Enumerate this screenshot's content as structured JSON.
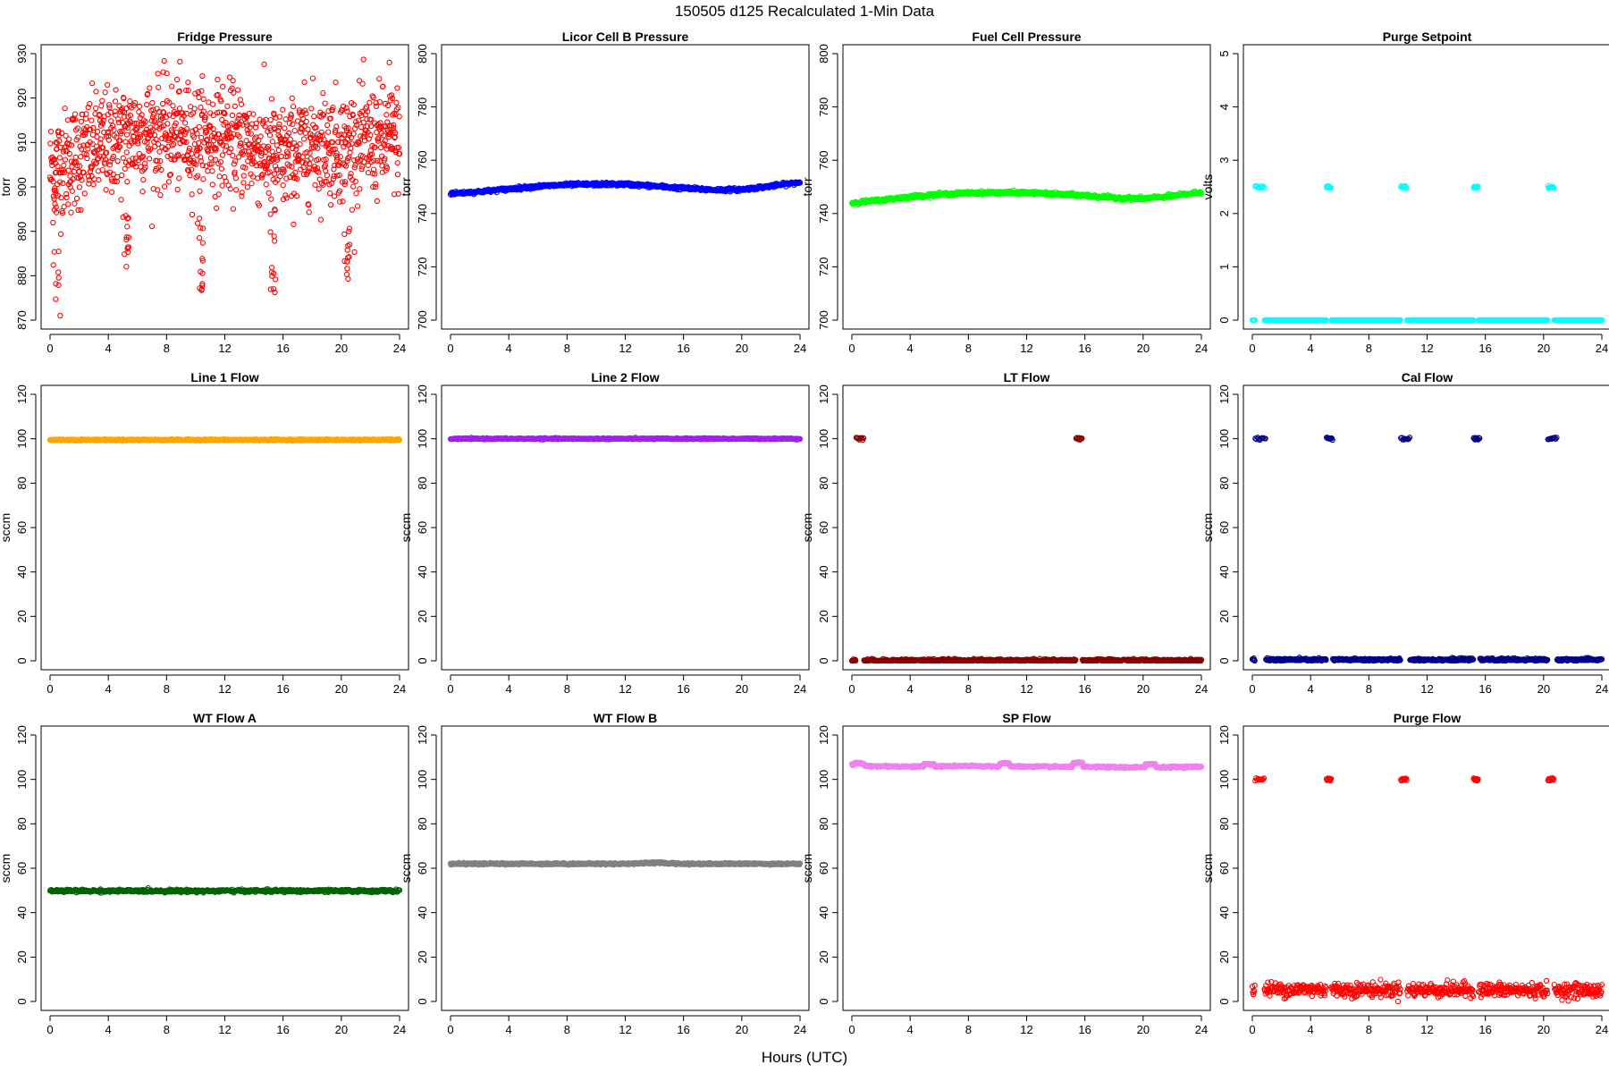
{
  "figure": {
    "title": "150505   d125   Recalculated 1-Min Data",
    "xlabel": "Hours (UTC)"
  },
  "chart_data": [
    {
      "type": "scatter",
      "title": "Fridge Pressure",
      "ylabel": "torr",
      "color": "#ff0000",
      "marker": "open-circle",
      "pattern": "noisy",
      "xlim": [
        0,
        24
      ],
      "ylim": [
        870,
        930
      ],
      "xticks": [
        0,
        4,
        8,
        12,
        16,
        20,
        24
      ],
      "yticks": [
        870,
        880,
        890,
        900,
        910,
        920,
        930
      ],
      "baseline": [
        [
          0,
          904
        ],
        [
          2,
          907
        ],
        [
          4,
          910
        ],
        [
          6,
          912
        ],
        [
          8,
          912
        ],
        [
          10,
          911
        ],
        [
          12,
          911
        ],
        [
          14,
          909
        ],
        [
          16,
          906
        ],
        [
          18,
          910
        ],
        [
          20,
          909
        ],
        [
          22,
          910
        ],
        [
          24,
          911
        ]
      ],
      "noise": 6,
      "events": [
        {
          "x": 0.4,
          "ymin": 871,
          "ymax": 900
        },
        {
          "x": 5.2,
          "ymin": 882,
          "ymax": 895
        },
        {
          "x": 10.3,
          "ymin": 874,
          "ymax": 898
        },
        {
          "x": 15.3,
          "ymin": 875,
          "ymax": 897
        },
        {
          "x": 20.4,
          "ymin": 878,
          "ymax": 892
        }
      ],
      "min": 871,
      "max": 928
    },
    {
      "type": "scatter",
      "title": "Licor Cell B Pressure",
      "ylabel": "torr",
      "color": "#0000ff",
      "marker": "open-circle",
      "pattern": "smooth",
      "xlim": [
        0,
        24
      ],
      "ylim": [
        700,
        800
      ],
      "xticks": [
        0,
        4,
        8,
        12,
        16,
        20,
        24
      ],
      "yticks": [
        700,
        720,
        740,
        760,
        780,
        800
      ],
      "baseline": [
        [
          0,
          747.5
        ],
        [
          2,
          748.2
        ],
        [
          4,
          749.2
        ],
        [
          6,
          750.2
        ],
        [
          8,
          750.8
        ],
        [
          10,
          751
        ],
        [
          12,
          751
        ],
        [
          14,
          750.3
        ],
        [
          16,
          749.5
        ],
        [
          18,
          748.9
        ],
        [
          20,
          749
        ],
        [
          22,
          750.3
        ],
        [
          24,
          751.7
        ]
      ],
      "noise": 0.3,
      "events": []
    },
    {
      "type": "scatter",
      "title": "Fuel Cell Pressure",
      "ylabel": "torr",
      "color": "#00ff00",
      "marker": "open-circle",
      "pattern": "smooth",
      "xlim": [
        0,
        24
      ],
      "ylim": [
        700,
        800
      ],
      "xticks": [
        0,
        4,
        8,
        12,
        16,
        20,
        24
      ],
      "yticks": [
        700,
        720,
        740,
        760,
        780,
        800
      ],
      "baseline": [
        [
          0,
          744
        ],
        [
          2,
          745
        ],
        [
          4,
          746.3
        ],
        [
          6,
          747.2
        ],
        [
          8,
          747.7
        ],
        [
          10,
          747.9
        ],
        [
          12,
          747.8
        ],
        [
          14,
          747.3
        ],
        [
          16,
          746.8
        ],
        [
          18,
          745.9
        ],
        [
          20,
          745.6
        ],
        [
          22,
          746.6
        ],
        [
          24,
          748
        ]
      ],
      "noise": 0.3,
      "events": []
    },
    {
      "type": "scatter",
      "title": "Purge Setpoint",
      "ylabel": "volts",
      "color": "#00ffff",
      "marker": "open-circle",
      "pattern": "events",
      "xlim": [
        0,
        24
      ],
      "ylim": [
        0,
        5
      ],
      "xticks": [
        0,
        4,
        8,
        12,
        16,
        20,
        24
      ],
      "yticks": [
        0,
        1,
        2,
        3,
        4,
        5
      ],
      "baseline": [
        [
          0,
          0
        ],
        [
          24,
          0
        ]
      ],
      "noise": 0,
      "event_value": 2.5,
      "events": [
        {
          "x": 0.2,
          "x2": 0.8
        },
        {
          "x": 5.1,
          "x2": 5.4
        },
        {
          "x": 10.2,
          "x2": 10.6
        },
        {
          "x": 15.2,
          "x2": 15.5
        },
        {
          "x": 20.3,
          "x2": 20.7
        }
      ]
    },
    {
      "type": "scatter",
      "title": "Line 1 Flow",
      "ylabel": "sccm",
      "color": "#ffa500",
      "marker": "open-circle",
      "pattern": "smooth",
      "xlim": [
        0,
        24
      ],
      "ylim": [
        0,
        120
      ],
      "xticks": [
        0,
        4,
        8,
        12,
        16,
        20,
        24
      ],
      "yticks": [
        0,
        20,
        40,
        60,
        80,
        100,
        120
      ],
      "baseline": [
        [
          0,
          99.5
        ],
        [
          24,
          99.5
        ]
      ],
      "noise": 0.15,
      "events": []
    },
    {
      "type": "scatter",
      "title": "Line 2 Flow",
      "ylabel": "sccm",
      "color": "#a020f0",
      "marker": "open-circle",
      "pattern": "smooth",
      "xlim": [
        0,
        24
      ],
      "ylim": [
        0,
        120
      ],
      "xticks": [
        0,
        4,
        8,
        12,
        16,
        20,
        24
      ],
      "yticks": [
        0,
        20,
        40,
        60,
        80,
        100,
        120
      ],
      "baseline": [
        [
          0,
          100
        ],
        [
          24,
          100
        ]
      ],
      "noise": 0.15,
      "events": []
    },
    {
      "type": "scatter",
      "title": "LT Flow",
      "ylabel": "sccm",
      "color": "#8b0000",
      "marker": "open-circle",
      "pattern": "events",
      "xlim": [
        0,
        24
      ],
      "ylim": [
        0,
        120
      ],
      "xticks": [
        0,
        4,
        8,
        12,
        16,
        20,
        24
      ],
      "yticks": [
        0,
        20,
        40,
        60,
        80,
        100,
        120
      ],
      "baseline": [
        [
          0,
          0.2
        ],
        [
          24,
          0.2
        ]
      ],
      "noise": 0.3,
      "event_value": 100,
      "events": [
        {
          "x": 0.3,
          "x2": 0.8
        },
        {
          "x": 15.4,
          "x2": 15.8
        }
      ]
    },
    {
      "type": "scatter",
      "title": "Cal Flow",
      "ylabel": "sccm",
      "color": "#00008b",
      "marker": "open-circle",
      "pattern": "events",
      "xlim": [
        0,
        24
      ],
      "ylim": [
        0,
        120
      ],
      "xticks": [
        0,
        4,
        8,
        12,
        16,
        20,
        24
      ],
      "yticks": [
        0,
        20,
        40,
        60,
        80,
        100,
        120
      ],
      "baseline": [
        [
          0,
          0.5
        ],
        [
          24,
          0.5
        ]
      ],
      "noise": 0.3,
      "event_value": 100,
      "events": [
        {
          "x": 0.2,
          "x2": 0.9
        },
        {
          "x": 5.1,
          "x2": 5.5
        },
        {
          "x": 10.2,
          "x2": 10.8
        },
        {
          "x": 15.2,
          "x2": 15.6
        },
        {
          "x": 20.3,
          "x2": 20.9
        }
      ]
    },
    {
      "type": "scatter",
      "title": "WT Flow A",
      "ylabel": "sccm",
      "color": "#006400",
      "marker": "open-circle",
      "pattern": "smooth",
      "xlim": [
        0,
        24
      ],
      "ylim": [
        0,
        120
      ],
      "xticks": [
        0,
        4,
        8,
        12,
        16,
        20,
        24
      ],
      "yticks": [
        0,
        20,
        40,
        60,
        80,
        100,
        120
      ],
      "baseline": [
        [
          0,
          49.8
        ],
        [
          24,
          49.8
        ]
      ],
      "noise": 0.3,
      "events": []
    },
    {
      "type": "scatter",
      "title": "WT Flow B",
      "ylabel": "sccm",
      "color": "#808080",
      "marker": "open-circle",
      "pattern": "smooth",
      "xlim": [
        0,
        24
      ],
      "ylim": [
        0,
        120
      ],
      "xticks": [
        0,
        4,
        8,
        12,
        16,
        20,
        24
      ],
      "yticks": [
        0,
        20,
        40,
        60,
        80,
        100,
        120
      ],
      "baseline": [
        [
          0,
          62
        ],
        [
          12,
          62
        ],
        [
          14,
          62.5
        ],
        [
          16,
          62
        ],
        [
          24,
          62
        ]
      ],
      "noise": 0.2,
      "events": []
    },
    {
      "type": "scatter",
      "title": "SP Flow",
      "ylabel": "sccm",
      "color": "#ee82ee",
      "marker": "open-circle",
      "pattern": "smooth",
      "xlim": [
        0,
        24
      ],
      "ylim": [
        0,
        120
      ],
      "xticks": [
        0,
        4,
        8,
        12,
        16,
        20,
        24
      ],
      "yticks": [
        0,
        20,
        40,
        60,
        80,
        100,
        120
      ],
      "baseline": [
        [
          0,
          106.5
        ],
        [
          1,
          106
        ],
        [
          4,
          105.8
        ],
        [
          8,
          106
        ],
        [
          12,
          105.8
        ],
        [
          16,
          105.6
        ],
        [
          20,
          105.4
        ],
        [
          24,
          105.7
        ]
      ],
      "noise": 0.2,
      "events": [
        {
          "x": 0.5,
          "bump": 1.0
        },
        {
          "x": 5.3,
          "bump": 1.0
        },
        {
          "x": 10.5,
          "bump": 1.3
        },
        {
          "x": 15.5,
          "bump": 1.8
        },
        {
          "x": 20.5,
          "bump": 1.5
        }
      ]
    },
    {
      "type": "scatter",
      "title": "Purge Flow",
      "ylabel": "sccm",
      "color": "#ff0000",
      "marker": "open-circle",
      "pattern": "events",
      "xlim": [
        0,
        24
      ],
      "ylim": [
        0,
        120
      ],
      "xticks": [
        0,
        4,
        8,
        12,
        16,
        20,
        24
      ],
      "yticks": [
        0,
        20,
        40,
        60,
        80,
        100,
        120
      ],
      "baseline": [
        [
          0,
          5.5
        ],
        [
          24,
          5
        ]
      ],
      "noise": 1.6,
      "event_value": 100,
      "events": [
        {
          "x": 0.2,
          "x2": 0.8
        },
        {
          "x": 5.1,
          "x2": 5.4
        },
        {
          "x": 10.2,
          "x2": 10.6
        },
        {
          "x": 15.2,
          "x2": 15.5
        },
        {
          "x": 20.3,
          "x2": 20.7
        }
      ]
    }
  ]
}
